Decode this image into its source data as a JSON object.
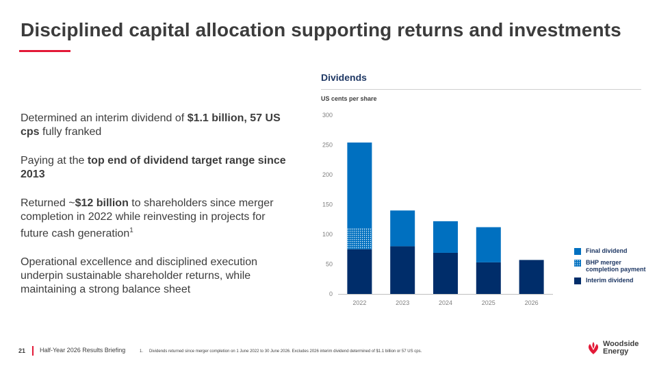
{
  "title": "Disciplined capital allocation supporting returns and investments",
  "bullets": [
    {
      "pre": "Determined an interim dividend of ",
      "bold": "$1.1 billion, 57 US cps",
      "post": " fully franked",
      "sup": ""
    },
    {
      "pre": "Paying at the ",
      "bold": "top end of dividend target range since 2013",
      "post": "",
      "sup": ""
    },
    {
      "pre": "Returned ~",
      "bold": "$12 billion",
      "post": " to shareholders since merger completion in 2022 while reinvesting in projects for future cash generation",
      "sup": "1"
    },
    {
      "pre": "Operational excellence and disciplined execution underpin sustainable shareholder returns, while maintaining a strong balance sheet",
      "bold": "",
      "post": "",
      "sup": ""
    }
  ],
  "chart_data": {
    "type": "bar",
    "stacked": true,
    "title": "Dividends",
    "ylabel": "US cents per share",
    "categories": [
      "2022",
      "2023",
      "2024",
      "2025",
      "2026"
    ],
    "ylim": [
      0,
      300
    ],
    "yticks": [
      0,
      50,
      100,
      150,
      200,
      250,
      300
    ],
    "series": [
      {
        "name": "Interim dividend",
        "values": [
          75,
          80,
          69,
          53,
          57
        ],
        "color": "#002d6a",
        "pattern": false
      },
      {
        "name": "BHP merger completion payment",
        "values": [
          35,
          0,
          0,
          0,
          0
        ],
        "color": "#0070c0",
        "pattern": true
      },
      {
        "name": "Final dividend",
        "values": [
          144,
          60,
          53,
          59,
          0
        ],
        "color": "#0070c0",
        "pattern": false
      }
    ],
    "legend": [
      {
        "name": "Final dividend",
        "color": "#0070c0",
        "pattern": false
      },
      {
        "name": "BHP merger completion payment",
        "color": "#0070c0",
        "pattern": true
      },
      {
        "name": "Interim dividend",
        "color": "#002d6a",
        "pattern": false
      }
    ],
    "legend_position": "right",
    "grid": false
  },
  "footer": {
    "page_number": "21",
    "briefing": "Half-Year 2026 Results Briefing",
    "footnote_number": "1.",
    "footnote": "Dividends returned since merger completion on 1 June 2022 to 30 June 2026. Excludes 2026 interim dividend determined of $1.1 billion or 57 US cps."
  },
  "logo": {
    "line1": "Woodside",
    "line2": "Energy",
    "icon": "woodside-logo-icon",
    "color": "#e31937"
  },
  "colors": {
    "accent": "#e31937",
    "navy": "#1f3864",
    "interim": "#002d6a",
    "final": "#0070c0"
  }
}
